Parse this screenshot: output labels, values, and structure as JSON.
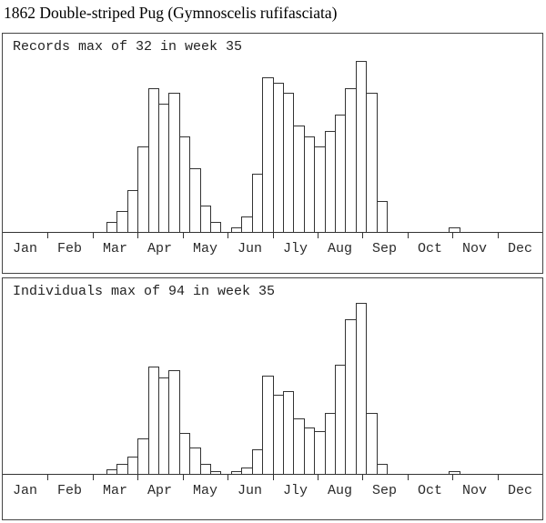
{
  "page": {
    "title": "1862 Double-striped Pug (Gymnoscelis rufifasciata)"
  },
  "months": [
    "Jan",
    "Feb",
    "Mar",
    "Apr",
    "May",
    "Jun",
    "Jly",
    "Aug",
    "Sep",
    "Oct",
    "Nov",
    "Dec"
  ],
  "colors": {
    "background": "#ffffff",
    "box_border": "#444444",
    "axis": "#333333",
    "bar_border": "#333333",
    "bar_fill": "#ffffff",
    "title_text": "#000000",
    "label_text": "#222222"
  },
  "chart_data": [
    {
      "id": "records",
      "type": "bar",
      "title": "Records max of 32 in week 35",
      "max_value": 32,
      "max_week": 35,
      "x_unit": "week of year (1-52), axis labeled by month",
      "points": [
        [
          11,
          2
        ],
        [
          12,
          4
        ],
        [
          13,
          8
        ],
        [
          14,
          16
        ],
        [
          15,
          27
        ],
        [
          16,
          24
        ],
        [
          17,
          26
        ],
        [
          18,
          18
        ],
        [
          19,
          12
        ],
        [
          20,
          5
        ],
        [
          21,
          2
        ],
        [
          23,
          1
        ],
        [
          24,
          3
        ],
        [
          25,
          11
        ],
        [
          26,
          29
        ],
        [
          27,
          28
        ],
        [
          28,
          26
        ],
        [
          29,
          20
        ],
        [
          30,
          18
        ],
        [
          31,
          16
        ],
        [
          32,
          19
        ],
        [
          33,
          22
        ],
        [
          34,
          27
        ],
        [
          35,
          32
        ],
        [
          36,
          26
        ],
        [
          37,
          6
        ],
        [
          44,
          1
        ]
      ]
    },
    {
      "id": "individuals",
      "type": "bar",
      "title": "Individuals max of 94 in week 35",
      "max_value": 94,
      "max_week": 35,
      "x_unit": "week of year (1-52), axis labeled by month",
      "points": [
        [
          11,
          3
        ],
        [
          12,
          6
        ],
        [
          13,
          10
        ],
        [
          14,
          20
        ],
        [
          15,
          59
        ],
        [
          16,
          53
        ],
        [
          17,
          57
        ],
        [
          18,
          23
        ],
        [
          19,
          15
        ],
        [
          20,
          6
        ],
        [
          21,
          2
        ],
        [
          23,
          2
        ],
        [
          24,
          4
        ],
        [
          25,
          14
        ],
        [
          26,
          54
        ],
        [
          27,
          44
        ],
        [
          28,
          46
        ],
        [
          29,
          31
        ],
        [
          30,
          26
        ],
        [
          31,
          24
        ],
        [
          32,
          34
        ],
        [
          33,
          60
        ],
        [
          34,
          85
        ],
        [
          35,
          94
        ],
        [
          36,
          34
        ],
        [
          37,
          6
        ],
        [
          44,
          2
        ]
      ]
    }
  ]
}
